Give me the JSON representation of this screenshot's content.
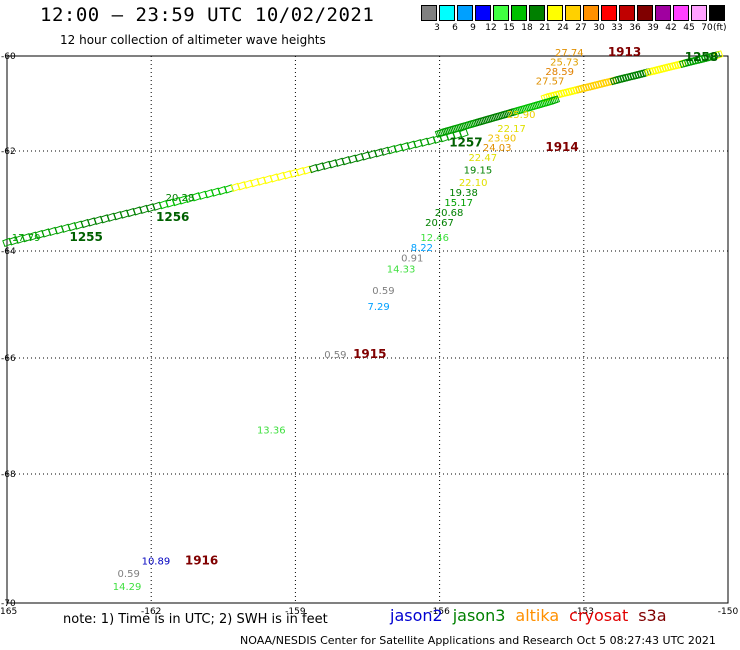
{
  "title": "12:00 – 23:59 UTC 10/02/2021",
  "subtitle": "12 hour collection of altimeter wave heights",
  "colorbar": {
    "unit": "(ft)",
    "items": [
      {
        "label": "3",
        "color": "#808080"
      },
      {
        "label": "6",
        "color": "#00ffff"
      },
      {
        "label": "9",
        "color": "#00a0ff"
      },
      {
        "label": "12",
        "color": "#0000ff"
      },
      {
        "label": "15",
        "color": "#40ff40"
      },
      {
        "label": "18",
        "color": "#00c000"
      },
      {
        "label": "21",
        "color": "#008000"
      },
      {
        "label": "24",
        "color": "#ffff00"
      },
      {
        "label": "27",
        "color": "#ffd000"
      },
      {
        "label": "30",
        "color": "#ff9000"
      },
      {
        "label": "33",
        "color": "#ff0000"
      },
      {
        "label": "36",
        "color": "#c00000"
      },
      {
        "label": "39",
        "color": "#800000"
      },
      {
        "label": "42",
        "color": "#a000a0"
      },
      {
        "label": "45",
        "color": "#ff40ff"
      },
      {
        "label": "70",
        "color": "#ffa0ff"
      },
      {
        "label": "",
        "color": "#000000"
      }
    ]
  },
  "axes": {
    "x_ticks": [
      "-165",
      "-162",
      "-159",
      "-156",
      "-153",
      "-150"
    ],
    "y_ticks": [
      "-60",
      "-62",
      "-64",
      "-66",
      "-68",
      "-70"
    ],
    "lon_range": [
      -165,
      -150
    ],
    "lat_range": [
      -70,
      -60
    ]
  },
  "orbit_labels": [
    {
      "text": "1913",
      "lon": -152.5,
      "lat": -60.0,
      "color": "#800000"
    },
    {
      "text": "1914",
      "lon": -153.8,
      "lat": -62.0,
      "color": "#800000"
    },
    {
      "text": "1915",
      "lon": -157.8,
      "lat": -66.0,
      "color": "#800000"
    },
    {
      "text": "1916",
      "lon": -161.3,
      "lat": -69.4,
      "color": "#800000"
    },
    {
      "text": "1255",
      "lon": -163.7,
      "lat": -63.8,
      "color": "#006000"
    },
    {
      "text": "1256",
      "lon": -161.9,
      "lat": -63.4,
      "color": "#006000"
    },
    {
      "text": "1257",
      "lon": -155.8,
      "lat": -61.9,
      "color": "#006000"
    },
    {
      "text": "1258",
      "lon": -150.9,
      "lat": -60.1,
      "color": "#006000"
    }
  ],
  "points": [
    {
      "text": "27.74",
      "lon": -153.6,
      "lat": -60.0,
      "color": "#e09000"
    },
    {
      "text": "25.73",
      "lon": -153.7,
      "lat": -60.2,
      "color": "#e0a000"
    },
    {
      "text": "28.59",
      "lon": -153.8,
      "lat": -60.4,
      "color": "#e08000"
    },
    {
      "text": "27.57",
      "lon": -154.0,
      "lat": -60.6,
      "color": "#e09000"
    },
    {
      "text": "25.90",
      "lon": -154.6,
      "lat": -61.3,
      "color": "#f0d000"
    },
    {
      "text": "22.17",
      "lon": -154.8,
      "lat": -61.6,
      "color": "#e0e000"
    },
    {
      "text": "23.90",
      "lon": -155.0,
      "lat": -61.8,
      "color": "#f0c000"
    },
    {
      "text": "24.03",
      "lon": -155.1,
      "lat": -62.0,
      "color": "#e09000"
    },
    {
      "text": "22.47",
      "lon": -155.4,
      "lat": -62.2,
      "color": "#e0e000"
    },
    {
      "text": "22.10",
      "lon": -155.6,
      "lat": -62.7,
      "color": "#e0e000"
    },
    {
      "text": "19.15",
      "lon": -155.5,
      "lat": -62.45,
      "color": "#008000"
    },
    {
      "text": "19.38",
      "lon": -155.8,
      "lat": -62.9,
      "color": "#008000"
    },
    {
      "text": "15.17",
      "lon": -155.9,
      "lat": -63.1,
      "color": "#00a000"
    },
    {
      "text": "20.68",
      "lon": -156.1,
      "lat": -63.3,
      "color": "#008000"
    },
    {
      "text": "20.67",
      "lon": -156.3,
      "lat": -63.5,
      "color": "#008000"
    },
    {
      "text": "12.46",
      "lon": -156.4,
      "lat": -63.8,
      "color": "#40e040"
    },
    {
      "text": "8.22",
      "lon": -156.6,
      "lat": -64.0,
      "color": "#00a0ff"
    },
    {
      "text": "0.91",
      "lon": -156.8,
      "lat": -64.2,
      "color": "#808080"
    },
    {
      "text": "14.33",
      "lon": -157.1,
      "lat": -64.4,
      "color": "#40e040"
    },
    {
      "text": "0.59",
      "lon": -157.4,
      "lat": -64.8,
      "color": "#808080"
    },
    {
      "text": "7.29",
      "lon": -157.5,
      "lat": -65.1,
      "color": "#00a0ff"
    },
    {
      "text": "0.59",
      "lon": -158.4,
      "lat": -66.0,
      "color": "#808080"
    },
    {
      "text": "13.36",
      "lon": -159.8,
      "lat": -67.3,
      "color": "#40e040"
    },
    {
      "text": "10.89",
      "lon": -162.2,
      "lat": -69.4,
      "color": "#0000c0"
    },
    {
      "text": "0.59",
      "lon": -162.7,
      "lat": -69.6,
      "color": "#808080"
    },
    {
      "text": "14.29",
      "lon": -162.8,
      "lat": -69.8,
      "color": "#40e040"
    },
    {
      "text": "20.28",
      "lon": -161.7,
      "lat": -63.0,
      "color": "#008000"
    },
    {
      "text": "17.79",
      "lon": -164.9,
      "lat": -63.8,
      "color": "#00a000"
    }
  ],
  "tracks": [
    {
      "lon0": -165.0,
      "lat0": -63.85,
      "lon1": -155.5,
      "lat1": -61.65,
      "colors": [
        "#00a000",
        "#008000",
        "#00c000",
        "#ffff00",
        "#008000",
        "#00a000"
      ]
    },
    {
      "lon0": -153.8,
      "lat0": -60.9,
      "lon1": -150.2,
      "lat1": -60.0,
      "colors": [
        "#ffff00",
        "#ffd000",
        "#008000",
        "#ffff00",
        "#00a000"
      ]
    },
    {
      "lon0": -156.0,
      "lat0": -61.65,
      "lon1": -153.6,
      "lat1": -60.95,
      "colors": [
        "#00a000",
        "#008000",
        "#00c000"
      ]
    }
  ],
  "note": "note: 1) Time is in UTC; 2) SWH is in feet",
  "legend": [
    {
      "text": "jason2",
      "color": "#0000d0"
    },
    {
      "text": "jason3",
      "color": "#008000"
    },
    {
      "text": "altika",
      "color": "#ff9000"
    },
    {
      "text": "cryosat",
      "color": "#e00000"
    },
    {
      "text": "s3a",
      "color": "#800000"
    }
  ],
  "credit": "NOAA/NESDIS Center for Satellite Applications and Research    Oct  5 08:27:43 UTC 2021"
}
